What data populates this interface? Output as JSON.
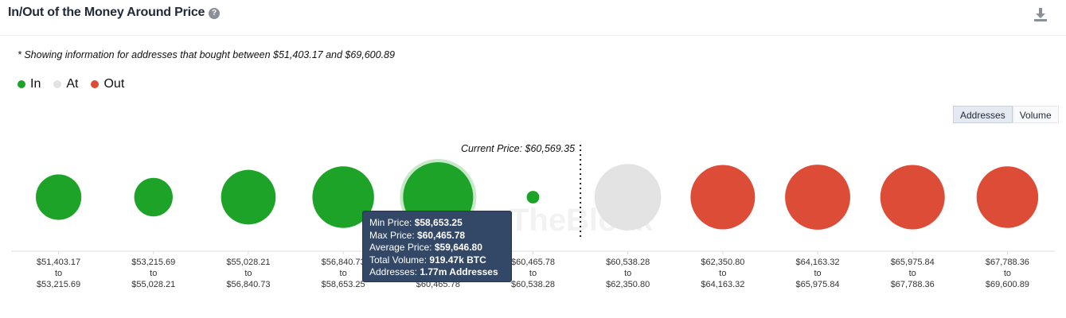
{
  "header": {
    "title": "In/Out of the Money Around Price",
    "help_icon": "question-circle-icon",
    "download_icon": "download-icon"
  },
  "note": "* Showing information for addresses that bought between $51,403.17 and $69,600.89",
  "legend": [
    {
      "label": "In",
      "color": "#1ea329"
    },
    {
      "label": "At",
      "color": "#e3e3e3"
    },
    {
      "label": "Out",
      "color": "#dc4c36"
    }
  ],
  "toggle": {
    "addresses": "Addresses",
    "volume": "Volume",
    "selected": "Addresses"
  },
  "current_price_label": "Current Price: $60,569.35",
  "watermark": "TheBlock",
  "tooltip": {
    "min_label": "Min Price:",
    "min_value": "$58,653.25",
    "max_label": "Max Price:",
    "max_value": "$60,465.78",
    "avg_label": "Average Price:",
    "avg_value": "$59,646.80",
    "vol_label": "Total Volume:",
    "vol_value": "919.47k BTC",
    "addr_label": "Addresses:",
    "addr_value": "1.77m Addresses"
  },
  "chart_data": {
    "type": "scatter",
    "title": "In/Out of the Money Around Price",
    "metric": "Addresses",
    "current_price": 60569.35,
    "highlighted_index": 4,
    "bins": [
      {
        "from": "$51,403.17",
        "to": "$53,215.69",
        "status": "In",
        "size": 0.65
      },
      {
        "from": "$53,215.69",
        "to": "$55,028.21",
        "status": "In",
        "size": 0.55
      },
      {
        "from": "$55,028.21",
        "to": "$56,840.73",
        "status": "In",
        "size": 0.78
      },
      {
        "from": "$56,840.73",
        "to": "$58,653.25",
        "status": "In",
        "size": 0.88
      },
      {
        "from": "$58,653.25",
        "to": "$60,465.78",
        "status": "In",
        "size": 1.0
      },
      {
        "from": "$60,465.78",
        "to": "$60,538.28",
        "status": "In",
        "size": 0.18
      },
      {
        "from": "$60,538.28",
        "to": "$62,350.80",
        "status": "At",
        "size": 0.95
      },
      {
        "from": "$62,350.80",
        "to": "$64,163.32",
        "status": "Out",
        "size": 0.92
      },
      {
        "from": "$64,163.32",
        "to": "$65,975.84",
        "status": "Out",
        "size": 0.93
      },
      {
        "from": "$65,975.84",
        "to": "$67,788.36",
        "status": "Out",
        "size": 0.92
      },
      {
        "from": "$67,788.36",
        "to": "$69,600.89",
        "status": "Out",
        "size": 0.88
      }
    ],
    "tick_connector": "to",
    "colors": {
      "In": "#1ea329",
      "At": "#e3e3e3",
      "Out": "#dc4c36"
    }
  }
}
